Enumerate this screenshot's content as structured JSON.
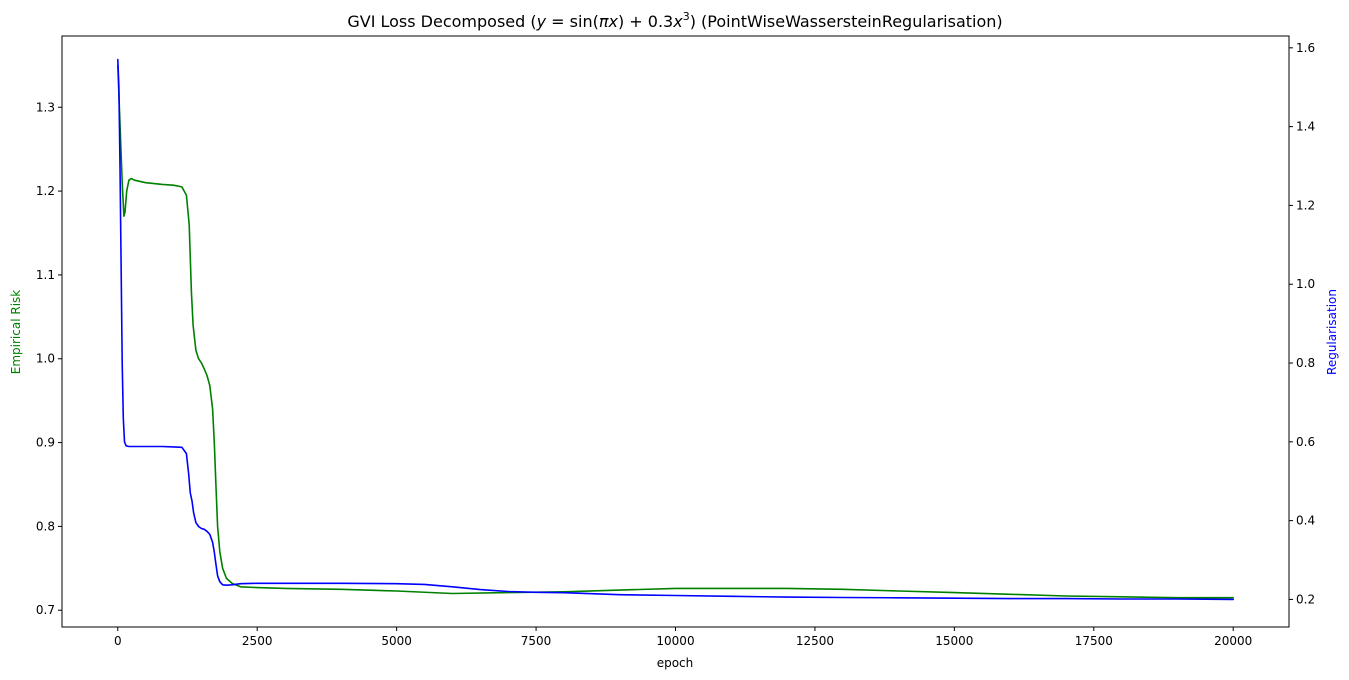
{
  "chart_data": {
    "type": "line",
    "title_parts": {
      "prefix": "GVI Loss Decomposed (",
      "formula_y": "y",
      "formula_eq": " = sin(",
      "formula_pi": "π",
      "formula_x": "x",
      "formula_plus": ") + 0.3",
      "formula_x3": "x",
      "formula_exp": "3",
      "suffix": ") (PointWiseWassersteinRegularisation)"
    },
    "xlabel": "epoch",
    "ylabel_left": "Empirical Risk",
    "ylabel_right": "Regularisation",
    "xlim": [
      -1000,
      21000
    ],
    "ylim_left": [
      0.68,
      1.385
    ],
    "ylim_right": [
      0.13,
      1.63
    ],
    "x_ticks": [
      0,
      2500,
      5000,
      7500,
      10000,
      12500,
      15000,
      17500,
      20000
    ],
    "x_tick_labels": [
      "0",
      "2500",
      "5000",
      "7500",
      "10000",
      "12500",
      "15000",
      "17500",
      "20000"
    ],
    "y_left_ticks": [
      0.7,
      0.8,
      0.9,
      1.0,
      1.1,
      1.2,
      1.3
    ],
    "y_left_tick_labels": [
      "0.7",
      "0.8",
      "0.9",
      "1.0",
      "1.1",
      "1.2",
      "1.3"
    ],
    "y_right_ticks": [
      0.2,
      0.4,
      0.6,
      0.8,
      1.0,
      1.2,
      1.4,
      1.6
    ],
    "y_right_tick_labels": [
      "0.2",
      "0.4",
      "0.6",
      "0.8",
      "1.0",
      "1.2",
      "1.4",
      "1.6"
    ],
    "series": [
      {
        "axis": "left",
        "color": "#008000",
        "x": [
          0,
          40,
          80,
          110,
          130,
          160,
          200,
          240,
          300,
          500,
          800,
          1000,
          1150,
          1230,
          1280,
          1320,
          1350,
          1400,
          1450,
          1500,
          1550,
          1600,
          1650,
          1700,
          1730,
          1760,
          1790,
          1830,
          1880,
          1950,
          2050,
          2200,
          2500,
          3000,
          4000,
          5000,
          6000,
          7000,
          8000,
          9000,
          10000,
          11000,
          12000,
          13000,
          14000,
          15000,
          16000,
          17000,
          18000,
          19000,
          20000
        ],
        "y": [
          1.35,
          1.28,
          1.21,
          1.17,
          1.175,
          1.2,
          1.213,
          1.215,
          1.213,
          1.21,
          1.208,
          1.207,
          1.205,
          1.195,
          1.16,
          1.08,
          1.04,
          1.01,
          1.0,
          0.995,
          0.988,
          0.98,
          0.968,
          0.94,
          0.9,
          0.85,
          0.8,
          0.77,
          0.75,
          0.738,
          0.732,
          0.728,
          0.727,
          0.726,
          0.725,
          0.723,
          0.72,
          0.721,
          0.722,
          0.724,
          0.726,
          0.726,
          0.726,
          0.725,
          0.723,
          0.721,
          0.719,
          0.717,
          0.716,
          0.715,
          0.715
        ]
      },
      {
        "axis": "right",
        "color": "#0000ff",
        "x": [
          0,
          20,
          40,
          60,
          80,
          100,
          120,
          150,
          200,
          300,
          500,
          800,
          1000,
          1150,
          1230,
          1270,
          1300,
          1330,
          1360,
          1400,
          1450,
          1500,
          1550,
          1600,
          1650,
          1700,
          1730,
          1760,
          1790,
          1830,
          1880,
          1950,
          2050,
          2200,
          2500,
          3000,
          4000,
          5000,
          5500,
          6000,
          6500,
          7000,
          7500,
          8000,
          9000,
          10000,
          11000,
          12000,
          13000,
          14000,
          15000,
          16000,
          17000,
          18000,
          19000,
          20000
        ],
        "y": [
          1.57,
          1.5,
          1.3,
          1.05,
          0.8,
          0.66,
          0.6,
          0.59,
          0.588,
          0.588,
          0.588,
          0.588,
          0.587,
          0.586,
          0.57,
          0.52,
          0.47,
          0.45,
          0.42,
          0.395,
          0.385,
          0.38,
          0.378,
          0.373,
          0.365,
          0.345,
          0.32,
          0.29,
          0.26,
          0.245,
          0.237,
          0.236,
          0.237,
          0.24,
          0.241,
          0.241,
          0.241,
          0.24,
          0.238,
          0.232,
          0.225,
          0.22,
          0.218,
          0.217,
          0.212,
          0.21,
          0.208,
          0.206,
          0.205,
          0.204,
          0.203,
          0.202,
          0.202,
          0.201,
          0.201,
          0.2
        ]
      }
    ]
  }
}
